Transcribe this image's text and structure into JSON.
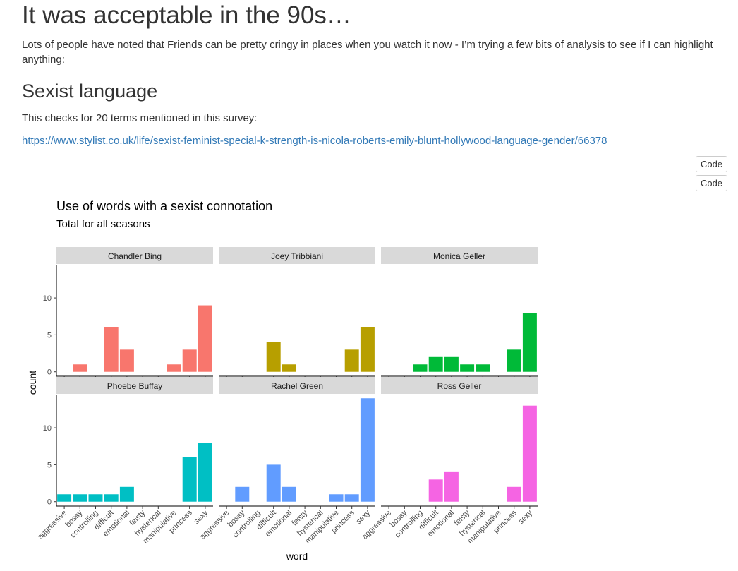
{
  "document": {
    "title": "It was acceptable in the 90s…",
    "intro": "Lots of people have noted that Friends can be pretty cringy in places when you watch it now - I’m trying a few bits of analysis to see if I can highlight anything:",
    "section_title": "Sexist language",
    "section_text": "This checks for 20 terms mentioned in this survey:",
    "link_text": "https://www.stylist.co.uk/life/sexist-feminist-special-k-strength-is-nicola-roberts-emily-blunt-hollywood-language-gender/66378",
    "code_buttons": [
      "Code",
      "Code"
    ]
  },
  "chart_data": {
    "type": "bar",
    "title": "Use of words with a sexist connotation",
    "subtitle": "Total for all seasons",
    "xlabel": "word",
    "ylabel": "count",
    "ylim": [
      0,
      14
    ],
    "yticks": [
      0,
      5,
      10
    ],
    "grid": false,
    "legend": "none",
    "categories": [
      "aggressive",
      "bossy",
      "controlling",
      "difficult",
      "emotional",
      "feisty",
      "hysterical",
      "manipulative",
      "princess",
      "sexy"
    ],
    "facets": [
      {
        "name": "Chandler Bing",
        "color": "#F8766D",
        "values": [
          0,
          1,
          0,
          6,
          3,
          0,
          0,
          1,
          3,
          9
        ]
      },
      {
        "name": "Joey Tribbiani",
        "color": "#B79F00",
        "values": [
          0,
          0,
          0,
          4,
          1,
          0,
          0,
          0,
          3,
          6
        ]
      },
      {
        "name": "Monica Geller",
        "color": "#00BA38",
        "values": [
          0,
          0,
          1,
          2,
          2,
          1,
          1,
          0,
          3,
          8
        ]
      },
      {
        "name": "Phoebe Buffay",
        "color": "#00BFC4",
        "values": [
          1,
          1,
          1,
          1,
          2,
          0,
          0,
          0,
          6,
          8
        ]
      },
      {
        "name": "Rachel Green",
        "color": "#619CFF",
        "values": [
          0,
          2,
          0,
          5,
          2,
          0,
          0,
          1,
          1,
          14
        ]
      },
      {
        "name": "Ross Geller",
        "color": "#F564E3",
        "values": [
          0,
          0,
          0,
          3,
          4,
          0,
          0,
          0,
          2,
          13
        ]
      }
    ]
  }
}
